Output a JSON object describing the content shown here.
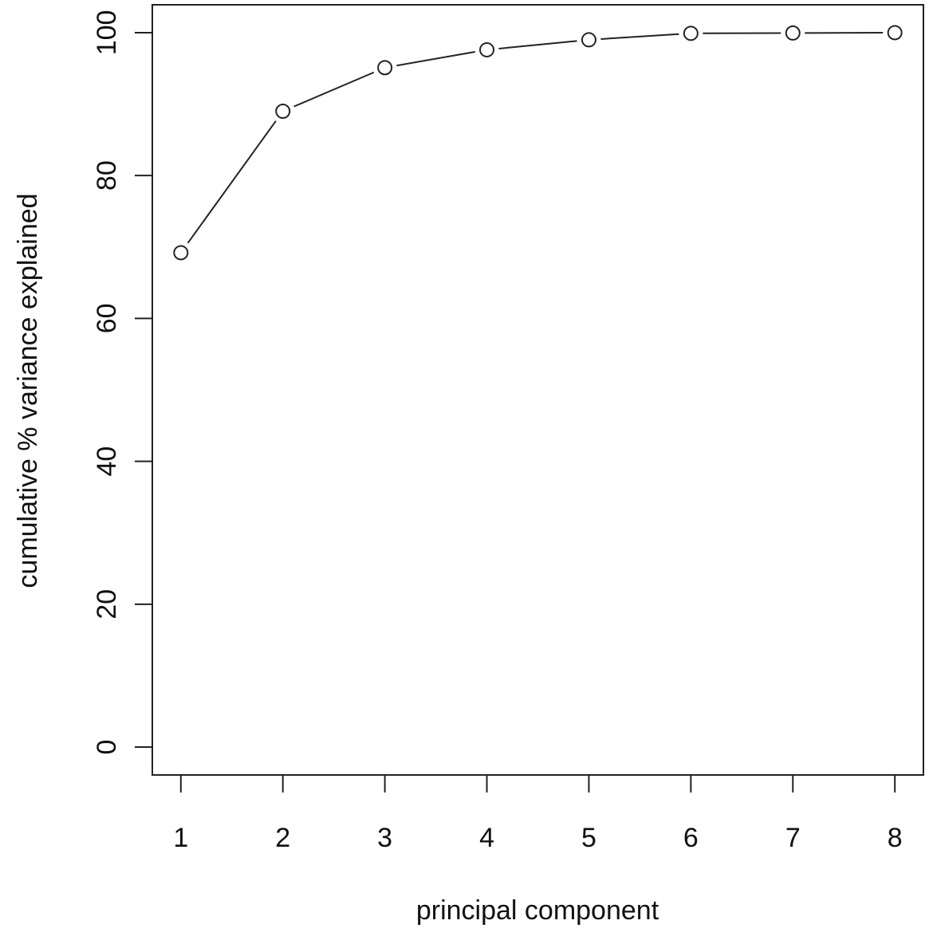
{
  "chart_data": {
    "type": "line",
    "title": "",
    "xlabel": "principal component",
    "ylabel": "cumulative % variance explained",
    "x": [
      1,
      2,
      3,
      4,
      5,
      6,
      7,
      8
    ],
    "series": [
      {
        "values": [
          69.2,
          89.0,
          95.1,
          97.6,
          99.0,
          99.9,
          99.95,
          100.0
        ]
      }
    ],
    "xticks": [
      "1",
      "2",
      "3",
      "4",
      "5",
      "6",
      "7",
      "8"
    ],
    "yticks": [
      "0",
      "20",
      "40",
      "60",
      "80",
      "100"
    ],
    "xlim": [
      0.72,
      8.28
    ],
    "ylim": [
      -3.9,
      103.9
    ],
    "marker": "open-circle",
    "grid": false,
    "legend": "none",
    "colors": {
      "line": "#222222",
      "marker": "#222222",
      "axis": "#222222"
    }
  }
}
